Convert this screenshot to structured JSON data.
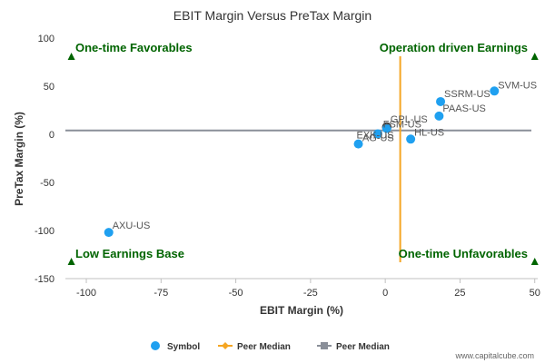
{
  "chart_data": {
    "type": "scatter",
    "title": "EBIT Margin Versus PreTax Margin",
    "xlabel": "EBIT Margin (%)",
    "ylabel": "PreTax Margin (%)",
    "xlim": [
      -107,
      51
    ],
    "ylim": [
      -150,
      100
    ],
    "xticks": [
      -100,
      -75,
      -50,
      -25,
      0,
      25,
      50
    ],
    "yticks": [
      100,
      50,
      0,
      -50,
      -100,
      -150
    ],
    "grid": false,
    "series": [
      {
        "name": "Symbol",
        "color": "#1fa0f0",
        "points": [
          {
            "label": "SVM-US",
            "x": 36.5,
            "y": 45
          },
          {
            "label": "SSRM-US",
            "x": 18.5,
            "y": 34
          },
          {
            "label": "PAAS-US",
            "x": 18,
            "y": 19
          },
          {
            "label": "GPL-US",
            "x": 0.5,
            "y": 7.5
          },
          {
            "label": "FSM-US",
            "x": 0.5,
            "y": 6
          },
          {
            "label": "HL-US",
            "x": 8.5,
            "y": -5
          },
          {
            "label": "AG-US",
            "x": -2.5,
            "y": 0.5
          },
          {
            "label": "EXK-US",
            "x": -9,
            "y": -10
          },
          {
            "label": "AXU-US",
            "x": -92.5,
            "y": -102
          }
        ]
      }
    ],
    "peer_median": {
      "x": 5,
      "y": 4,
      "vertical_color": "#f5a623",
      "horizontal_color": "#8a8f99"
    },
    "quadrants": {
      "top_left": "One-time Favorables",
      "top_right": "Operation driven Earnings",
      "bottom_left": "Low Earnings Base",
      "bottom_right": "One-time Unfavorables",
      "color": "#006400"
    },
    "legend": {
      "placement": "bottom-center",
      "items": [
        {
          "label": "Symbol",
          "color": "#1fa0f0",
          "marker": "circle"
        },
        {
          "label": "Peer Median",
          "color": "#f5a623",
          "marker": "diamond-line"
        },
        {
          "label": "Peer Median",
          "color": "#8a8f99",
          "marker": "square-line"
        }
      ]
    },
    "credit": "www.capitalcube.com"
  }
}
